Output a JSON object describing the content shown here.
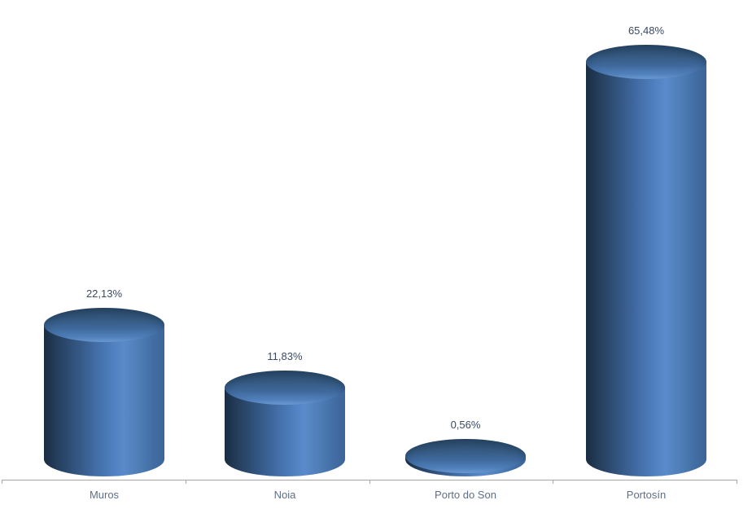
{
  "chart_data": {
    "type": "bar",
    "subtype": "3d-cylinder",
    "title": "",
    "xlabel": "",
    "ylabel": "",
    "categories": [
      "Muros",
      "Noia",
      "Porto do Son",
      "Portosín"
    ],
    "values": [
      22.13,
      11.83,
      0.56,
      65.48
    ],
    "value_labels": [
      "22,13%",
      "11,83%",
      "0,56%",
      "65,48%"
    ],
    "ylim": [
      0,
      100
    ],
    "grid": false,
    "legend": false,
    "background": "#ffffff",
    "colors": {
      "bar_shadow_edge": "#1a2c42",
      "bar_mid": "#3a6398",
      "bar_highlight": "#5a8aca",
      "bar_top_dark": "#2d4c6d",
      "bar_top_light": "#6fa0d8",
      "value_label_text": "#3a4a63",
      "category_label_text": "#5f6e88",
      "axis_line": "#a6a6a6"
    }
  }
}
